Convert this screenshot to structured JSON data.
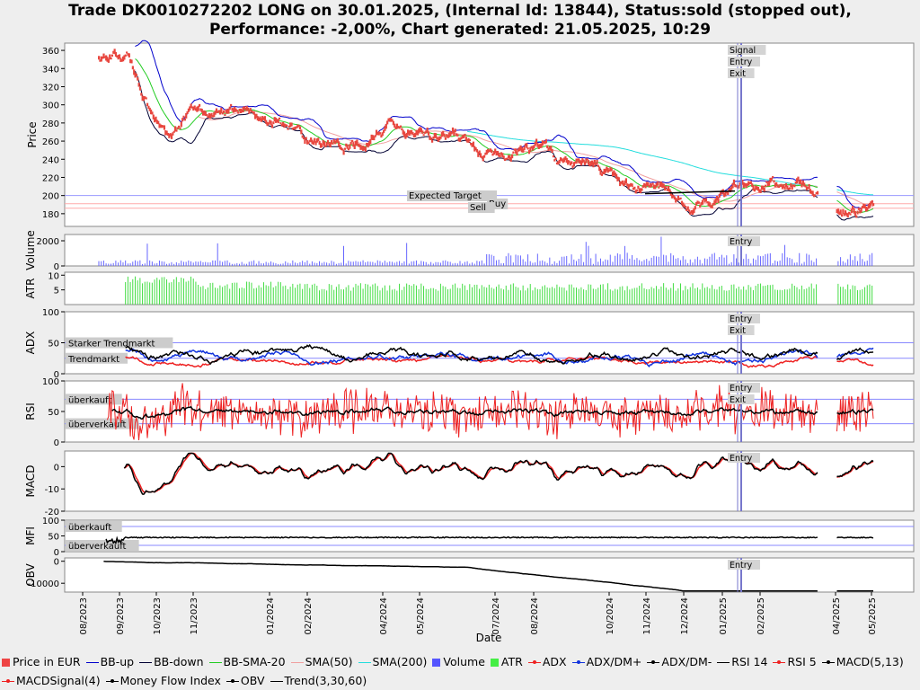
{
  "title_line1": "Trade DK0010272202 LONG on 30.01.2025, (Internal Id: 13844), Status:sold (stopped out),",
  "title_line2": "Performance: -2,00%, Chart generated: 21.05.2025, 10:29",
  "chart_data": [
    {
      "type": "line",
      "panel": "price",
      "ylabel": "Price",
      "ylim": [
        166,
        368
      ],
      "yticks": [
        180,
        200,
        220,
        240,
        260,
        280,
        300,
        320,
        340,
        360
      ],
      "hlines": [
        {
          "label": "Expected Target",
          "value": 200
        },
        {
          "label": "Buy",
          "value": 191
        },
        {
          "label": "Sell",
          "value": 186
        }
      ],
      "signals": [
        "Signal",
        "Entry",
        "Exit"
      ],
      "series": [
        {
          "name": "Price in EUR",
          "color": "#e8473f",
          "x": [
            "09/2023",
            "10/2023",
            "11/2023",
            "01/2024",
            "02/2024",
            "04/2024",
            "05/2024",
            "07/2024",
            "08/2024",
            "10/2024",
            "11/2024",
            "12/2024",
            "01/2025",
            "02/2025",
            "04/2025",
            "05/2025"
          ],
          "values": [
            352,
            268,
            290,
            290,
            252,
            270,
            268,
            240,
            246,
            212,
            202,
            195,
            198,
            220,
            186,
            178
          ]
        },
        {
          "name": "BB-up",
          "color": "#0000cc"
        },
        {
          "name": "BB-down",
          "color": "#000033"
        },
        {
          "name": "BB-SMA-20",
          "color": "#22cc22"
        },
        {
          "name": "SMA(50)",
          "color": "#f0a0a0"
        },
        {
          "name": "SMA(200)",
          "color": "#22dddd"
        }
      ]
    },
    {
      "type": "bar",
      "panel": "volume",
      "ylabel": "Volume",
      "ylim": [
        0,
        2500
      ],
      "yticks": [
        0,
        2000
      ],
      "series": [
        {
          "name": "Volume",
          "color": "#6666ff"
        }
      ],
      "signals": [
        "Entry"
      ]
    },
    {
      "type": "bar",
      "panel": "atr",
      "ylabel": "ATR",
      "ylim": [
        0,
        11
      ],
      "yticks": [
        5,
        10
      ],
      "series": [
        {
          "name": "ATR",
          "color": "#44dd44"
        }
      ]
    },
    {
      "type": "line",
      "panel": "adx",
      "ylabel": "ADX",
      "ylim": [
        0,
        100
      ],
      "yticks": [
        0,
        50,
        100
      ],
      "hlines": [
        {
          "label": "Starker Trendmarkt",
          "value": 50
        },
        {
          "label": "Trendmarkt",
          "value": 25
        }
      ],
      "signals": [
        "Entry",
        "Exit"
      ],
      "series": [
        {
          "name": "ADX",
          "color": "#ee2222"
        },
        {
          "name": "ADX/DM+",
          "color": "#1133dd"
        },
        {
          "name": "ADX/DM-",
          "color": "#000000"
        }
      ]
    },
    {
      "type": "line",
      "panel": "rsi",
      "ylabel": "RSI",
      "ylim": [
        0,
        100
      ],
      "yticks": [
        0,
        50,
        100
      ],
      "hlines": [
        {
          "label": "überkauft",
          "value": 70
        },
        {
          "label": "überverkauft",
          "value": 30
        }
      ],
      "signals": [
        "Entry",
        "Exit"
      ],
      "series": [
        {
          "name": "RSI 14",
          "color": "#000000"
        },
        {
          "name": "RSI 5",
          "color": "#ee2222"
        }
      ]
    },
    {
      "type": "line",
      "panel": "macd",
      "ylabel": "MACD",
      "ylim": [
        -20,
        7
      ],
      "yticks": [
        -20,
        -10,
        0
      ],
      "signals": [
        "Entry"
      ],
      "series": [
        {
          "name": "MACD(5,13)",
          "color": "#000000"
        },
        {
          "name": "MACDSignal(4)",
          "color": "#ee2222"
        }
      ]
    },
    {
      "type": "line",
      "panel": "mfi",
      "ylabel": "MFI",
      "ylim": [
        0,
        100
      ],
      "yticks": [
        0,
        50,
        100
      ],
      "hlines": [
        {
          "label": "überkauft",
          "value": 80
        },
        {
          "label": "überverkauft",
          "value": 20
        }
      ],
      "series": [
        {
          "name": "Money Flow Index",
          "color": "#000000"
        }
      ]
    },
    {
      "type": "line",
      "panel": "obv",
      "ylabel": "OBV",
      "ylim": [
        -14000,
        1500
      ],
      "yticks": [
        -10000,
        0
      ],
      "signals": [
        "Entry"
      ],
      "series": [
        {
          "name": "OBV",
          "color": "#000000"
        }
      ]
    }
  ],
  "x_axis": {
    "label": "Date",
    "ticks": [
      "08/2023",
      "09/2023",
      "10/2023",
      "11/2023",
      "01/2024",
      "02/2024",
      "04/2024",
      "05/2024",
      "07/2024",
      "08/2024",
      "10/2024",
      "11/2024",
      "12/2024",
      "01/2025",
      "02/2025",
      "04/2025",
      "05/2025"
    ]
  },
  "legend": [
    {
      "label": "Price in EUR",
      "kind": "box",
      "color": "#ee4444"
    },
    {
      "label": "BB-up",
      "kind": "line",
      "color": "#0000cc"
    },
    {
      "label": "BB-down",
      "kind": "line",
      "color": "#000033"
    },
    {
      "label": "BB-SMA-20",
      "kind": "line",
      "color": "#22cc22"
    },
    {
      "label": "SMA(50)",
      "kind": "line",
      "color": "#f0a0a0"
    },
    {
      "label": "SMA(200)",
      "kind": "line",
      "color": "#22dddd"
    },
    {
      "label": "Volume",
      "kind": "box",
      "color": "#5555ff"
    },
    {
      "label": "ATR",
      "kind": "box",
      "color": "#44ee44"
    },
    {
      "label": "ADX",
      "kind": "dotline",
      "color": "#ee2222"
    },
    {
      "label": "ADX/DM+",
      "kind": "dotline",
      "color": "#1133dd"
    },
    {
      "label": "ADX/DM-",
      "kind": "dotline",
      "color": "#000000"
    },
    {
      "label": "RSI 14",
      "kind": "line",
      "color": "#000000"
    },
    {
      "label": "RSI 5",
      "kind": "dotline",
      "color": "#ee2222"
    },
    {
      "label": "MACD(5,13)",
      "kind": "dotline",
      "color": "#000000"
    },
    {
      "label": "MACDSignal(4)",
      "kind": "dotline",
      "color": "#ee2222"
    },
    {
      "label": "Money Flow Index",
      "kind": "dotline",
      "color": "#000000"
    },
    {
      "label": "OBV",
      "kind": "dotline",
      "color": "#000000"
    },
    {
      "label": "Trend(3,30,60)",
      "kind": "line",
      "color": "#000000"
    }
  ]
}
